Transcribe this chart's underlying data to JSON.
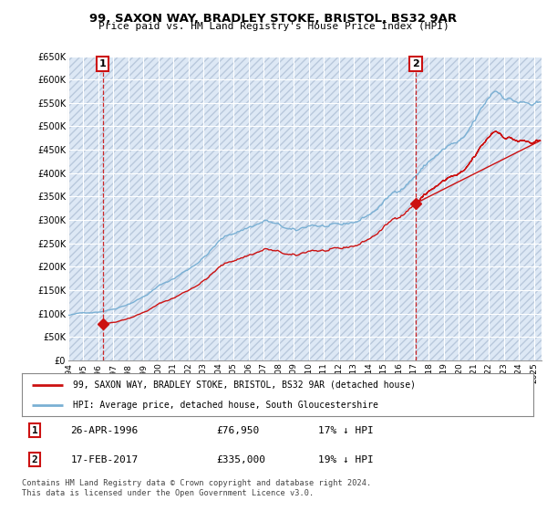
{
  "title": "99, SAXON WAY, BRADLEY STOKE, BRISTOL, BS32 9AR",
  "subtitle": "Price paid vs. HM Land Registry's House Price Index (HPI)",
  "legend_line1": "99, SAXON WAY, BRADLEY STOKE, BRISTOL, BS32 9AR (detached house)",
  "legend_line2": "HPI: Average price, detached house, South Gloucestershire",
  "sale1_date": "26-APR-1996",
  "sale1_price": "£76,950",
  "sale1_hpi": "17% ↓ HPI",
  "sale1_year": 1996.29,
  "sale1_value": 76950,
  "sale2_date": "17-FEB-2017",
  "sale2_price": "£335,000",
  "sale2_hpi": "19% ↓ HPI",
  "sale2_year": 2017.12,
  "sale2_value": 335000,
  "footer": "Contains HM Land Registry data © Crown copyright and database right 2024.\nThis data is licensed under the Open Government Licence v3.0.",
  "hpi_color": "#7ab0d4",
  "price_color": "#cc1111",
  "bg_color": "#ffffff",
  "plot_bg_color": "#dde8f5",
  "grid_color": "#ffffff",
  "ylim": [
    0,
    650000
  ],
  "xlim": [
    1994.0,
    2025.5
  ],
  "yticks": [
    0,
    50000,
    100000,
    150000,
    200000,
    250000,
    300000,
    350000,
    400000,
    450000,
    500000,
    550000,
    600000,
    650000
  ],
  "ytick_labels": [
    "£0",
    "£50K",
    "£100K",
    "£150K",
    "£200K",
    "£250K",
    "£300K",
    "£350K",
    "£400K",
    "£450K",
    "£500K",
    "£550K",
    "£600K",
    "£650K"
  ],
  "xticks": [
    1994,
    1995,
    1996,
    1997,
    1998,
    1999,
    2000,
    2001,
    2002,
    2003,
    2004,
    2005,
    2006,
    2007,
    2008,
    2009,
    2010,
    2011,
    2012,
    2013,
    2014,
    2015,
    2016,
    2017,
    2018,
    2019,
    2020,
    2021,
    2022,
    2023,
    2024,
    2025
  ]
}
